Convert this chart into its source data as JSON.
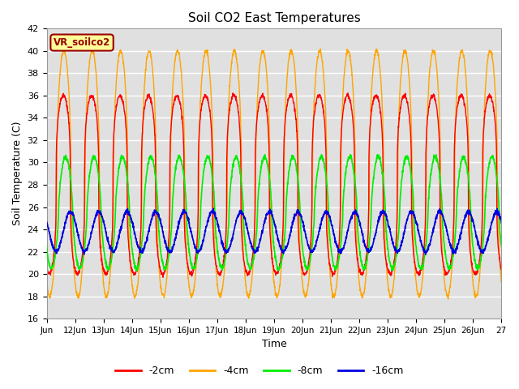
{
  "title": "Soil CO2 East Temperatures",
  "xlabel": "Time",
  "ylabel": "Soil Temperature (C)",
  "ylim": [
    16,
    42
  ],
  "xlim_days": [
    11,
    27
  ],
  "tick_days": [
    11,
    12,
    13,
    14,
    15,
    16,
    17,
    18,
    19,
    20,
    21,
    22,
    23,
    24,
    25,
    26,
    27
  ],
  "tick_labels": [
    "Jun",
    "12Jun",
    "13Jun",
    "14Jun",
    "15Jun",
    "16Jun",
    "17Jun",
    "18Jun",
    "19Jun",
    "20Jun",
    "21Jun",
    "22Jun",
    "23Jun",
    "24Jun",
    "25Jun",
    "26Jun",
    "27"
  ],
  "yticks": [
    16,
    18,
    20,
    22,
    24,
    26,
    28,
    30,
    32,
    34,
    36,
    38,
    40,
    42
  ],
  "colors": {
    "2cm": "#ff0000",
    "4cm": "#ffa500",
    "8cm": "#00ee00",
    "16cm": "#0000dd"
  },
  "labels": [
    "-2cm",
    "-4cm",
    "-8cm",
    "-16cm"
  ],
  "bg_color": "#e0e0e0",
  "annotation_text": "VR_soilco2",
  "annotation_bg": "#ffff99",
  "annotation_border": "#990000",
  "n_per_day": 144,
  "n_days": 16,
  "start_day": 11,
  "series": {
    "2cm": {
      "mean": 28.0,
      "amp": 8.0,
      "phase_hours": 14.0,
      "sharpness": 3.0,
      "trend": 0.0
    },
    "4cm": {
      "mean": 29.0,
      "amp": 11.0,
      "phase_hours": 14.5,
      "sharpness": 2.0,
      "trend": 0.0
    },
    "8cm": {
      "mean": 25.5,
      "amp": 5.0,
      "phase_hours": 16.0,
      "sharpness": 1.5,
      "trend": 0.0
    },
    "16cm": {
      "mean": 23.8,
      "amp": 1.8,
      "phase_hours": 20.0,
      "sharpness": 1.0,
      "trend": 0.0
    }
  }
}
